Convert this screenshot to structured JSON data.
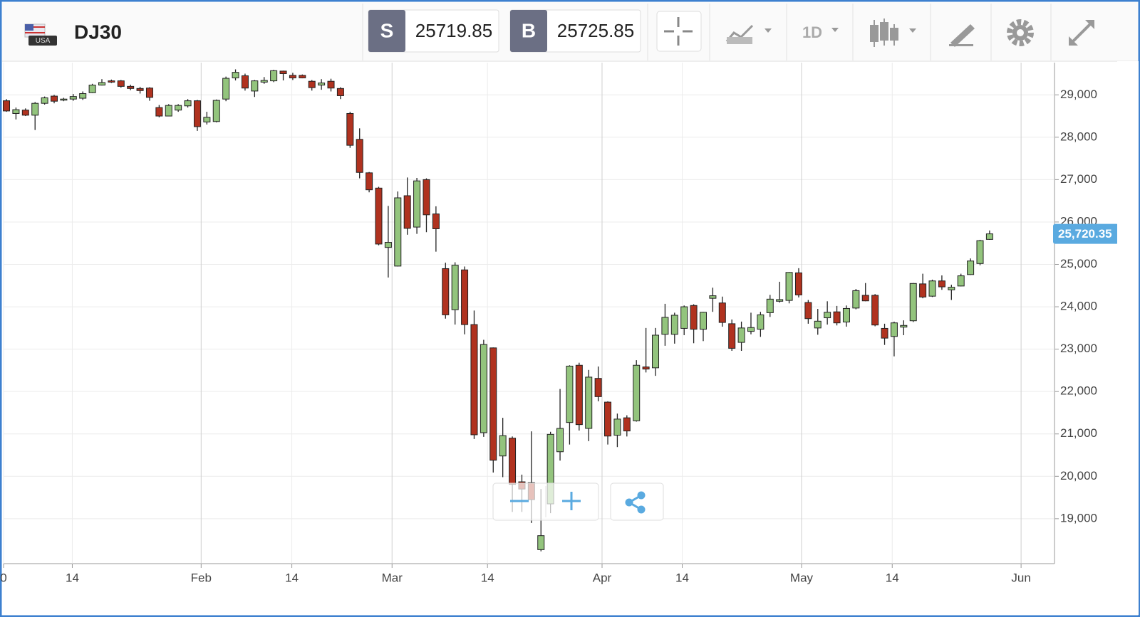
{
  "header": {
    "flag_label": "USA",
    "symbol": "DJ30",
    "sell": {
      "label": "S",
      "price": "25719.85"
    },
    "buy": {
      "label": "B",
      "price": "25725.85"
    },
    "interval": "1D"
  },
  "chart_data": {
    "type": "candlestick",
    "up_color": "#93c47d",
    "down_color": "#b0321f",
    "grid": true,
    "last_price": {
      "value": 25720.35,
      "label": "25,720.35"
    },
    "last_price_color": "#5aaae0",
    "xlim": [
      -0.3,
      109.8
    ],
    "ylim": [
      17940,
      29760
    ],
    "xticks": [
      {
        "value": -0.3,
        "label": "0"
      },
      {
        "value": 6.9,
        "label": "14"
      },
      {
        "value": 20.4,
        "label": "Feb"
      },
      {
        "value": 29.9,
        "label": "14"
      },
      {
        "value": 40.4,
        "label": "Mar"
      },
      {
        "value": 50.4,
        "label": "14"
      },
      {
        "value": 62.4,
        "label": "Apr"
      },
      {
        "value": 70.8,
        "label": "14"
      },
      {
        "value": 83.3,
        "label": "May"
      },
      {
        "value": 92.8,
        "label": "14"
      },
      {
        "value": 106.3,
        "label": "Jun"
      }
    ],
    "yticks": [
      {
        "value": 19000,
        "label": "19,000"
      },
      {
        "value": 20000,
        "label": "20,000"
      },
      {
        "value": 21000,
        "label": "21,000"
      },
      {
        "value": 22000,
        "label": "22,000"
      },
      {
        "value": 23000,
        "label": "23,000"
      },
      {
        "value": 24000,
        "label": "24,000"
      },
      {
        "value": 25000,
        "label": "25,000"
      },
      {
        "value": 26000,
        "label": "26,000"
      },
      {
        "value": 27000,
        "label": "27,000"
      },
      {
        "value": 28000,
        "label": "28,000"
      },
      {
        "value": 29000,
        "label": "29,000"
      }
    ],
    "open": [
      28860,
      28560,
      28640,
      28520,
      28800,
      28970,
      28880,
      28900,
      28920,
      29050,
      29230,
      29330,
      29330,
      29200,
      29150,
      29160,
      28700,
      28500,
      28640,
      28740,
      28860,
      28360,
      28370,
      28900,
      29400,
      29450,
      29090,
      29300,
      29330,
      29560,
      29460,
      29460,
      29320,
      29230,
      29320,
      29150,
      28560,
      27950,
      27160,
      26800,
      25400,
      24960,
      26620,
      25880,
      27000,
      26190,
      24900,
      23930,
      24870,
      23580,
      21030,
      23030,
      20480,
      20900,
      19870,
      19850,
      18270,
      19350,
      20580,
      21270,
      22620,
      21130,
      22310,
      21750,
      20970,
      21380,
      21310,
      22580,
      22560,
      23350,
      23350,
      23490,
      24030,
      23470,
      24200,
      24090,
      23600,
      23160,
      23420,
      23470,
      23860,
      24130,
      24150,
      24800,
      24100,
      23500,
      23740,
      23880,
      23640,
      23970,
      24270,
      24270,
      23490,
      23300,
      23520,
      23670,
      24540,
      24250,
      24610,
      24400,
      24490,
      24760,
      25020,
      25590
    ],
    "high": [
      28900,
      28700,
      28680,
      28830,
      28960,
      29000,
      28930,
      29020,
      29080,
      29260,
      29370,
      29360,
      29350,
      29240,
      29190,
      29180,
      28760,
      28780,
      28780,
      28900,
      28880,
      28600,
      28890,
      29430,
      29600,
      29500,
      29350,
      29420,
      29590,
      29570,
      29520,
      29480,
      29350,
      29370,
      29380,
      29180,
      28600,
      28210,
      27180,
      26830,
      26380,
      26720,
      27050,
      27040,
      27030,
      26370,
      25040,
      25050,
      24950,
      23910,
      23220,
      23040,
      21380,
      20940,
      20040,
      21060,
      19700,
      21050,
      22060,
      22620,
      22680,
      22510,
      22590,
      21770,
      21480,
      21440,
      22740,
      23500,
      23500,
      24070,
      23860,
      24030,
      24060,
      23880,
      24450,
      24240,
      23700,
      23650,
      23860,
      23880,
      24280,
      24590,
      24820,
      24910,
      24160,
      23950,
      24130,
      24020,
      24030,
      24420,
      24560,
      24300,
      23600,
      23650,
      23680,
      24560,
      24780,
      24640,
      24740,
      24520,
      24780,
      25140,
      25580,
      25800
    ],
    "low": [
      28600,
      28420,
      28500,
      28170,
      28770,
      28800,
      28850,
      28860,
      28880,
      29040,
      29220,
      29280,
      29170,
      29110,
      29030,
      28860,
      28470,
      28500,
      28600,
      28700,
      28150,
      28300,
      28350,
      28850,
      29340,
      29100,
      28950,
      29260,
      29300,
      29340,
      29350,
      29390,
      29100,
      29120,
      29080,
      28900,
      27750,
      27030,
      26700,
      25450,
      24690,
      24950,
      25700,
      25720,
      25760,
      25300,
      23720,
      23580,
      23350,
      20880,
      20930,
      20090,
      19980,
      19160,
      19160,
      18900,
      18230,
      19130,
      20370,
      20750,
      21080,
      20830,
      21770,
      20750,
      20690,
      20940,
      21290,
      22450,
      22370,
      23080,
      23130,
      23330,
      23140,
      23190,
      23880,
      23530,
      22960,
      22960,
      23350,
      23290,
      23760,
      24100,
      24080,
      24220,
      23600,
      23340,
      23580,
      23560,
      23530,
      23940,
      24130,
      23540,
      23100,
      22830,
      23330,
      23640,
      24200,
      24230,
      24400,
      24160,
      24480,
      24750,
      24980,
      25580
    ],
    "close": [
      28620,
      28650,
      28520,
      28800,
      28930,
      28850,
      28900,
      28960,
      29030,
      29230,
      29290,
      29300,
      29200,
      29150,
      29100,
      28940,
      28500,
      28750,
      28750,
      28860,
      28250,
      28470,
      28870,
      29390,
      29530,
      29160,
      29330,
      29340,
      29570,
      29500,
      29400,
      29400,
      29170,
      29280,
      29160,
      28980,
      27810,
      27170,
      26760,
      25480,
      25520,
      26570,
      25850,
      26970,
      26170,
      25840,
      23810,
      24980,
      23580,
      20980,
      23110,
      20380,
      20960,
      19810,
      19700,
      19450,
      18600,
      20990,
      21130,
      22600,
      21220,
      22340,
      21880,
      20950,
      21350,
      21070,
      22620,
      22530,
      23330,
      23750,
      23800,
      24000,
      23470,
      23870,
      24260,
      23630,
      23020,
      23500,
      23510,
      23810,
      24180,
      24170,
      24810,
      24280,
      23720,
      23660,
      23870,
      23620,
      23960,
      24380,
      24140,
      23570,
      23260,
      23620,
      23560,
      24550,
      24230,
      24610,
      24470,
      24460,
      24730,
      25080,
      25560,
      25720
    ]
  }
}
